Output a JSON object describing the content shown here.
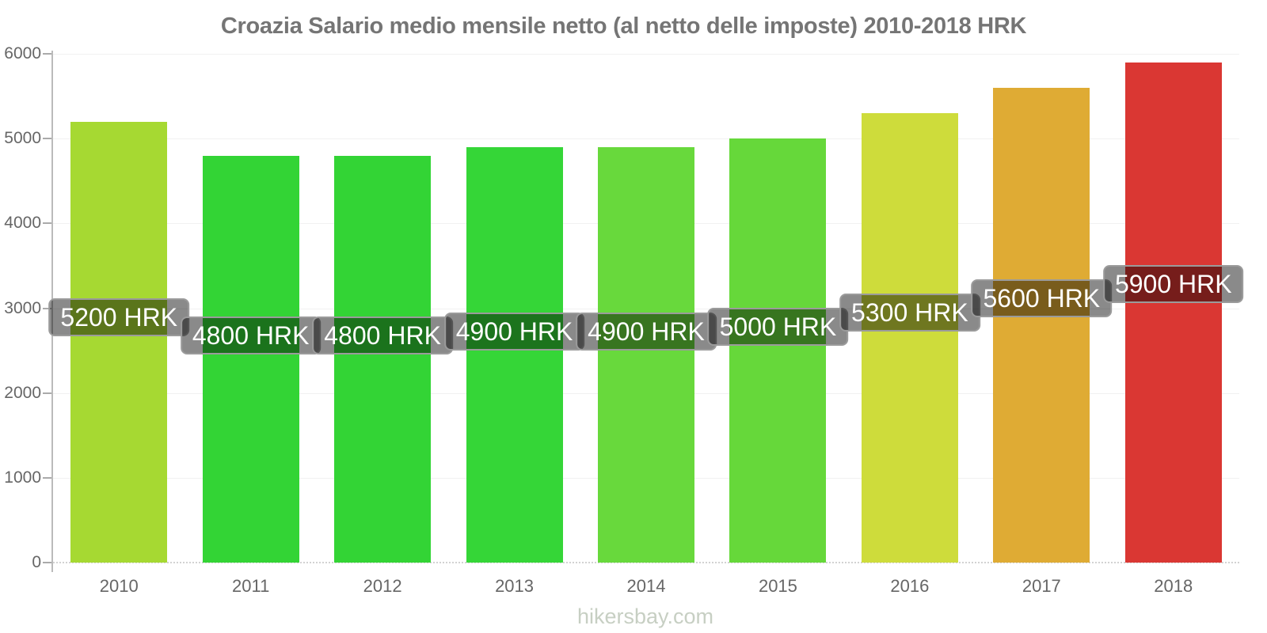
{
  "title": "Croazia Salario medio mensile netto (al netto delle imposte) 2010-2018 HRK",
  "footer": "hikersbay.com",
  "chart_data": {
    "type": "bar",
    "title": "Croazia Salario medio mensile netto (al netto delle imposte) 2010-2018 HRK",
    "categories": [
      "2010",
      "2011",
      "2012",
      "2013",
      "2014",
      "2015",
      "2016",
      "2017",
      "2018"
    ],
    "values": [
      5200,
      4800,
      4800,
      4900,
      4900,
      5000,
      5300,
      5600,
      5900
    ],
    "bar_labels": [
      "5200 HRK",
      "4800 HRK",
      "4800 HRK",
      "4900 HRK",
      "4900 HRK",
      "5000 HRK",
      "5300 HRK",
      "5600 HRK",
      "5900 HRK"
    ],
    "bar_colors": [
      "#a6d932",
      "#33d435",
      "#33d435",
      "#35d637",
      "#68d93c",
      "#66d83a",
      "#cedc3b",
      "#dfab34",
      "#da3733"
    ],
    "unit": "HRK",
    "xlabel": "",
    "ylabel": "",
    "ylim": [
      0,
      6000
    ],
    "yticks": [
      0,
      1000,
      2000,
      3000,
      4000,
      5000,
      6000
    ],
    "grid": "horizontal",
    "legend_position": "none",
    "badge_background": "rgba(0,0,0,0.46)",
    "badge_text_color": "#ffffff"
  }
}
